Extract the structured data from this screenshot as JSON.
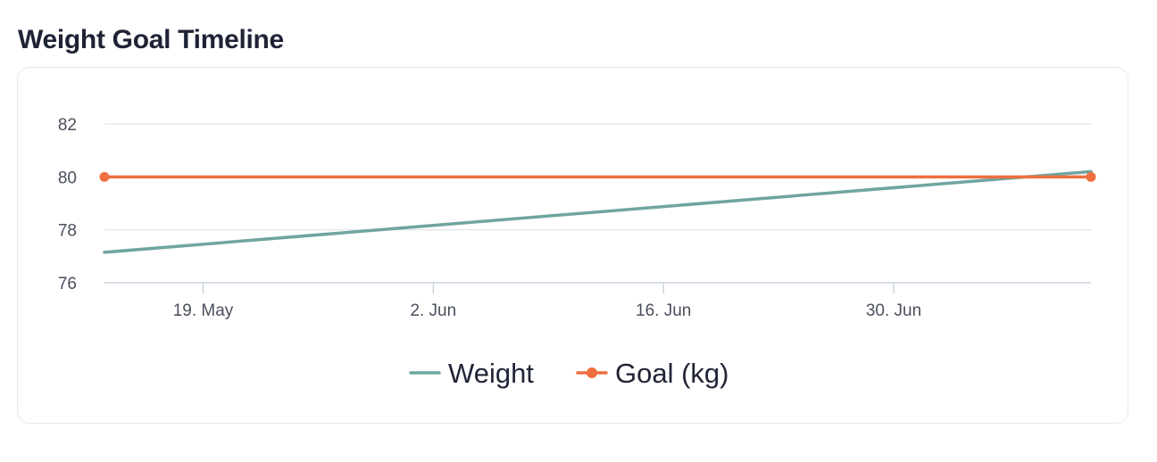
{
  "page": {
    "title": "Weight Goal Timeline"
  },
  "chart_data": {
    "type": "line",
    "title": "Weight Goal Timeline",
    "xlabel": "",
    "ylabel": "",
    "x_axis": {
      "type": "date",
      "range": [
        "2024-05-13",
        "2024-07-12"
      ],
      "ticks": [
        {
          "date": "2024-05-19",
          "label": "19. May"
        },
        {
          "date": "2024-06-02",
          "label": "2. Jun"
        },
        {
          "date": "2024-06-16",
          "label": "16. Jun"
        },
        {
          "date": "2024-06-30",
          "label": "30. Jun"
        }
      ]
    },
    "y_axis": {
      "ylim": [
        76,
        82
      ],
      "ticks": [
        76,
        78,
        80,
        82
      ]
    },
    "grid": true,
    "legend": "bottom-center",
    "series": [
      {
        "name": "Weight",
        "color": "#6fa59f",
        "markers": false,
        "points": [
          {
            "x": "2024-05-13",
            "y": 77.15
          },
          {
            "x": "2024-07-12",
            "y": 80.2
          }
        ]
      },
      {
        "name": "Goal (kg)",
        "color": "#ee6f3f",
        "markers": true,
        "points": [
          {
            "x": "2024-05-13",
            "y": 80
          },
          {
            "x": "2024-07-12",
            "y": 80
          }
        ]
      }
    ]
  }
}
